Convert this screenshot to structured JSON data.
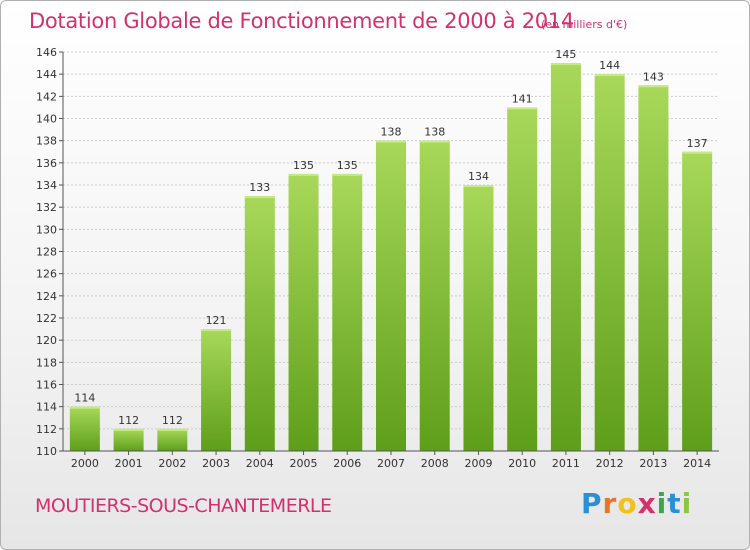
{
  "header": {
    "title": "Dotation Globale de Fonctionnement de 2000 à 2014",
    "unit": "(en milliers d'€)"
  },
  "footer": {
    "commune": "MOUTIERS-SOUS-CHANTEMERLE",
    "logo": "Proxiti",
    "logo_colors": [
      "#2a8fd6",
      "#e8732a",
      "#f2c21b",
      "#d4306e",
      "#3aa84a",
      "#2a8fd6",
      "#8dc63f"
    ]
  },
  "colors": {
    "bar_light": "#a8d85a",
    "bar_dark": "#5e9e1a",
    "axis": "#555555",
    "grid": "#cccccc"
  },
  "chart_data": {
    "type": "bar",
    "categories": [
      "2000",
      "2001",
      "2002",
      "2003",
      "2004",
      "2005",
      "2006",
      "2007",
      "2008",
      "2009",
      "2010",
      "2011",
      "2012",
      "2013",
      "2014"
    ],
    "values": [
      114,
      112,
      112,
      121,
      133,
      135,
      135,
      138,
      138,
      134,
      141,
      145,
      144,
      143,
      137
    ],
    "ylim": [
      110,
      146
    ],
    "yticks": [
      110,
      112,
      114,
      116,
      118,
      120,
      122,
      124,
      126,
      128,
      130,
      132,
      134,
      136,
      138,
      140,
      142,
      144,
      146
    ],
    "grid": true,
    "legend": "none"
  }
}
